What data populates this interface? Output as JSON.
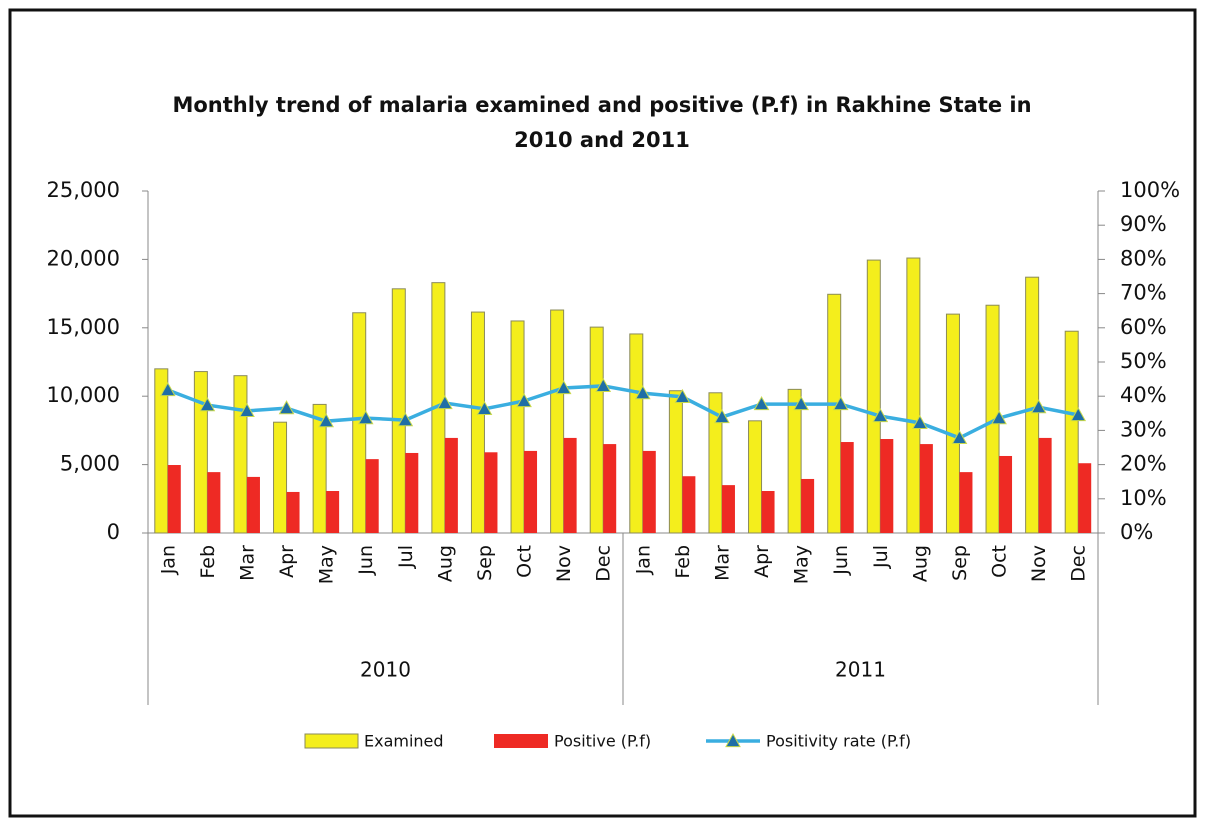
{
  "chart_data": {
    "type": "bar-line",
    "title": [
      "Monthly trend of malaria examined and positive (P.f) in Rakhine State in",
      "2010 and 2011"
    ],
    "categories": [
      "Jan",
      "Feb",
      "Mar",
      "Apr",
      "May",
      "Jun",
      "Jul",
      "Aug",
      "Sep",
      "Oct",
      "Nov",
      "Dec",
      "Jan",
      "Feb",
      "Mar",
      "Apr",
      "May",
      "Jun",
      "Jul",
      "Aug",
      "Sep",
      "Oct",
      "Nov",
      "Dec"
    ],
    "groups": [
      "2010",
      "2011"
    ],
    "series": [
      {
        "name": "Examined",
        "type": "bar",
        "color": "#f4ee1c",
        "values": [
          12000,
          11800,
          11500,
          8100,
          9400,
          16100,
          17850,
          18300,
          16150,
          15500,
          16300,
          15050,
          14550,
          10400,
          10250,
          8200,
          10500,
          17450,
          19950,
          20100,
          16000,
          16650,
          18700,
          14750
        ]
      },
      {
        "name": "Positive (P.f)",
        "type": "bar",
        "color": "#ee2a24",
        "values": [
          4970,
          4450,
          4100,
          3000,
          3070,
          5400,
          5850,
          6950,
          5900,
          6000,
          6950,
          6500,
          6000,
          4150,
          3500,
          3070,
          3950,
          6650,
          6870,
          6500,
          4450,
          5630,
          6950,
          5100
        ]
      },
      {
        "name": "Positivity rate (P.f)",
        "type": "line",
        "axis": "y2",
        "color": "#3aaee0",
        "marker_color": "#1f6ea6",
        "values": [
          41.8,
          37.4,
          35.7,
          36.5,
          32.7,
          33.6,
          33.0,
          38.0,
          36.3,
          38.6,
          42.4,
          43.0,
          40.9,
          39.8,
          33.9,
          37.7,
          37.7,
          37.7,
          34.2,
          32.2,
          27.8,
          33.6,
          36.8,
          34.5
        ]
      }
    ],
    "ylim": [
      0,
      25000
    ],
    "yticks": [
      0,
      {
        "value": 5000,
        "label": "5,000"
      },
      {
        "value": 10000,
        "label": "10,000"
      },
      {
        "value": 15000,
        "label": "15,000"
      },
      {
        "value": 20000,
        "label": "20,000"
      },
      {
        "value": 25000,
        "label": "25,000"
      }
    ],
    "y2lim": [
      0,
      100
    ],
    "y2ticks": [
      {
        "value": 0,
        "label": "0%"
      },
      {
        "value": 10,
        "label": "10%"
      },
      {
        "value": 20,
        "label": "20%"
      },
      {
        "value": 30,
        "label": "30%"
      },
      {
        "value": 40,
        "label": "40%"
      },
      {
        "value": 50,
        "label": "50%"
      },
      {
        "value": 60,
        "label": "60%"
      },
      {
        "value": 70,
        "label": "70%"
      },
      {
        "value": 80,
        "label": "80%"
      },
      {
        "value": 90,
        "label": "90%"
      },
      {
        "value": 100,
        "label": "100%"
      }
    ],
    "grid": false,
    "legend": "bottom"
  }
}
